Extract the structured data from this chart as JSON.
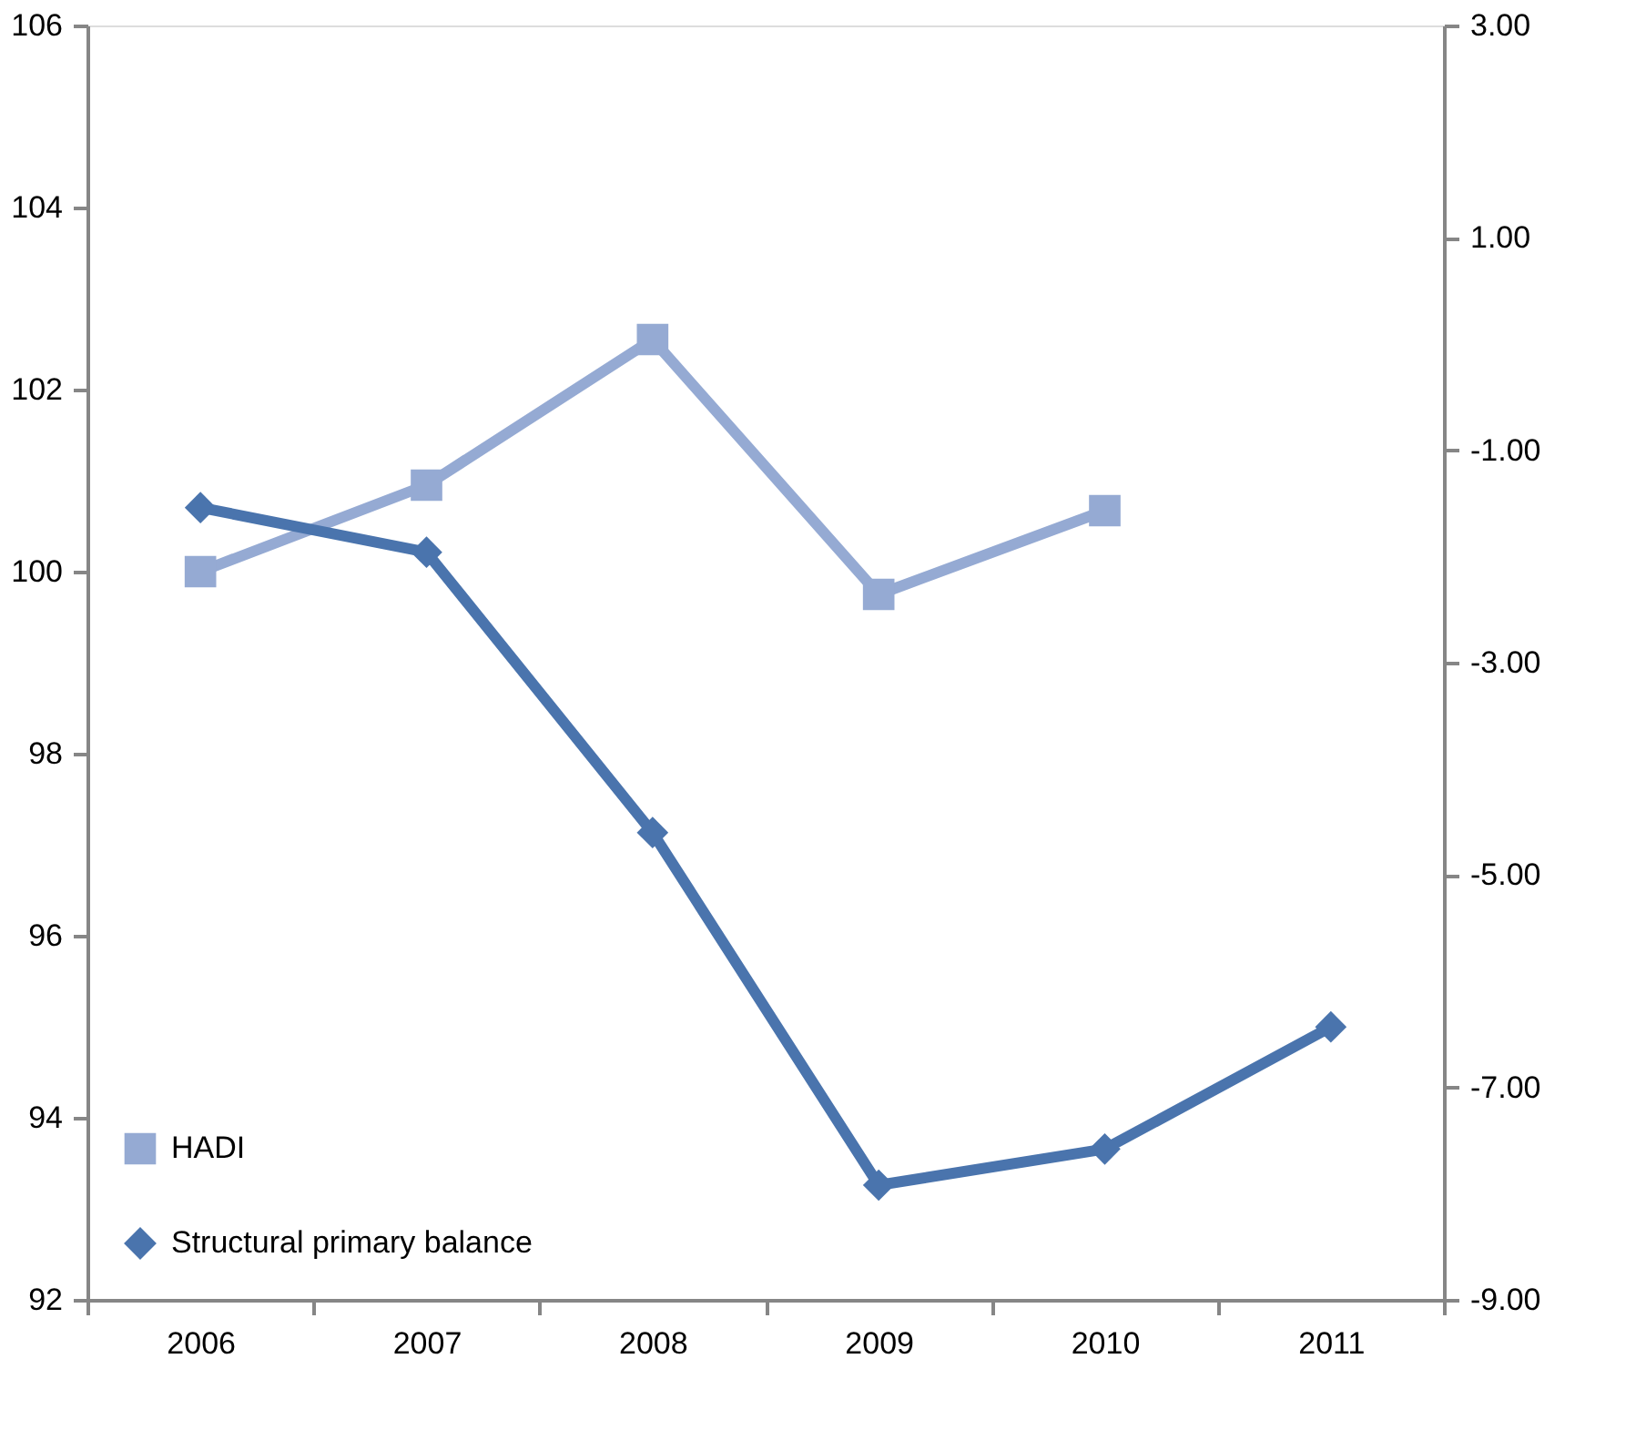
{
  "chart_data": {
    "type": "line",
    "categories": [
      "2006",
      "2007",
      "2008",
      "2009",
      "2010",
      "2011"
    ],
    "series": [
      {
        "name": "HADI",
        "color": "#95aad3",
        "marker": "square",
        "values": [
          100.0,
          100.95,
          102.55,
          99.75,
          100.67,
          null
        ]
      },
      {
        "name": "Structural primary balance",
        "color": "#4a74ad",
        "marker": "diamond",
        "axis": "y2",
        "values": [
          -1.54,
          -1.96,
          -4.6,
          -7.92,
          -7.58,
          -6.43
        ]
      }
    ],
    "ylim": [
      92,
      106
    ],
    "yticks": [
      92,
      94,
      96,
      98,
      100,
      102,
      104,
      106
    ],
    "y2lim": [
      -9,
      3
    ],
    "y2ticks": [
      {
        "value": -9,
        "label": "-9.00"
      },
      {
        "value": -7,
        "label": "-7.00"
      },
      {
        "value": -5,
        "label": "-5.00"
      },
      {
        "value": -3,
        "label": "-3.00"
      },
      {
        "value": -1,
        "label": "-1.00"
      },
      {
        "value": 1,
        "label": "1.00"
      },
      {
        "value": 3,
        "label": "3.00"
      }
    ],
    "grid": false,
    "legend": "bottom left",
    "line_style": "solid"
  }
}
